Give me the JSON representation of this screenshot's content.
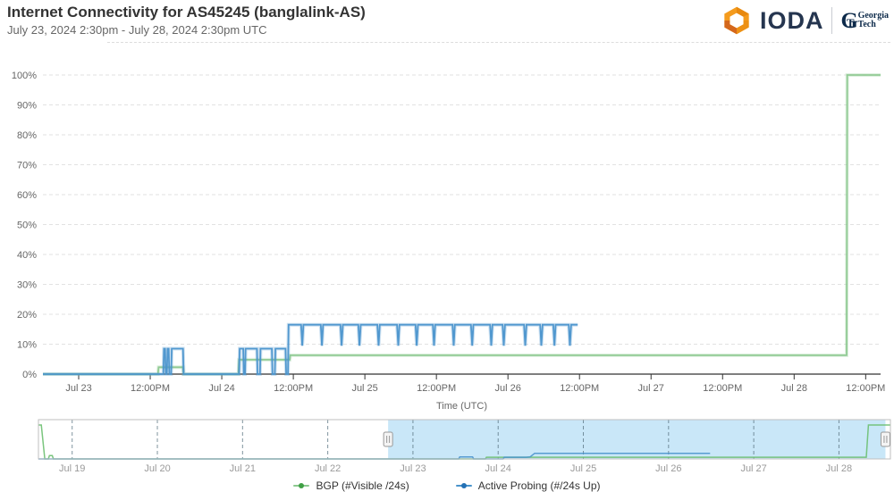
{
  "header": {
    "title": "Internet Connectivity for AS45245 (banglalink-AS)",
    "subtitle": "July 23, 2024 2:30pm - July 28, 2024 2:30pm UTC",
    "logos": {
      "ioda": "IODA",
      "gt_mark": "G",
      "gt_mark_t": "T",
      "gt_line1": "Georgia",
      "gt_line2": "Tech"
    }
  },
  "legend": {
    "items": [
      {
        "label": "BGP (#Visible /24s)",
        "color": "#8cc88f",
        "marker": "#3fa045"
      },
      {
        "label": "Active Probing (#/24s Up)",
        "color": "#4a94cc",
        "marker": "#2471b5"
      }
    ]
  },
  "chart_data": {
    "type": "line",
    "title": "Internet Connectivity for AS45245 (banglalink-AS)",
    "subtitle": "July 23, 2024 2:30pm - July 28, 2024 2:30pm UTC",
    "xlabel": "Time (UTC)",
    "ylabel": "",
    "legend_position": "bottom",
    "grid": "horizontal-dashed",
    "main": {
      "x_unit_hours_origin": "Jul 22 2024 18:00 UTC",
      "x_range": [
        0,
        140.5
      ],
      "y_range": [
        0,
        100
      ],
      "y_ticks": [
        {
          "v": 0,
          "label": "0%"
        },
        {
          "v": 10,
          "label": "10%"
        },
        {
          "v": 20,
          "label": "20%"
        },
        {
          "v": 30,
          "label": "30%"
        },
        {
          "v": 40,
          "label": "40%"
        },
        {
          "v": 50,
          "label": "50%"
        },
        {
          "v": 60,
          "label": "60%"
        },
        {
          "v": 70,
          "label": "70%"
        },
        {
          "v": 80,
          "label": "80%"
        },
        {
          "v": 90,
          "label": "90%"
        },
        {
          "v": 100,
          "label": "100%"
        }
      ],
      "x_ticks": [
        {
          "t": 6,
          "label": "Jul 23"
        },
        {
          "t": 18,
          "label": "12:00PM"
        },
        {
          "t": 30,
          "label": "Jul 24"
        },
        {
          "t": 42,
          "label": "12:00PM"
        },
        {
          "t": 54,
          "label": "Jul 25"
        },
        {
          "t": 66,
          "label": "12:00PM"
        },
        {
          "t": 78,
          "label": "Jul 26"
        },
        {
          "t": 90,
          "label": "12:00PM"
        },
        {
          "t": 102,
          "label": "Jul 27"
        },
        {
          "t": 114,
          "label": "12:00PM"
        },
        {
          "t": 126,
          "label": "Jul 28"
        },
        {
          "t": 138,
          "label": "12:00PM"
        }
      ],
      "series": [
        {
          "name": "BGP (#Visible /24s)",
          "color": "#8cc88f",
          "points": [
            [
              0,
              0
            ],
            [
              19.3,
              0
            ],
            [
              19.4,
              2.3
            ],
            [
              23.5,
              2.3
            ],
            [
              23.6,
              0
            ],
            [
              32.8,
              0
            ],
            [
              32.9,
              4.8
            ],
            [
              41.4,
              4.8
            ],
            [
              41.5,
              6.3
            ],
            [
              134.8,
              6.3
            ],
            [
              134.9,
              100
            ],
            [
              140.5,
              100
            ]
          ]
        },
        {
          "name": "Active Probing (#/24s Up)",
          "color": "#4a94cc",
          "points": [
            [
              0,
              0
            ],
            [
              20.2,
              0
            ],
            [
              20.3,
              8.5
            ],
            [
              20.5,
              8.5
            ],
            [
              20.6,
              0
            ],
            [
              20.8,
              0
            ],
            [
              20.9,
              8.5
            ],
            [
              21.1,
              8.5
            ],
            [
              21.2,
              0
            ],
            [
              21.5,
              0
            ],
            [
              21.6,
              8.5
            ],
            [
              23.5,
              8.5
            ],
            [
              23.6,
              0
            ],
            [
              32.9,
              0
            ],
            [
              33.0,
              8.5
            ],
            [
              33.6,
              8.5
            ],
            [
              33.7,
              0
            ],
            [
              33.9,
              0
            ],
            [
              34.0,
              8.5
            ],
            [
              35.9,
              8.5
            ],
            [
              36.0,
              0
            ],
            [
              36.4,
              0
            ],
            [
              36.5,
              8.5
            ],
            [
              38.4,
              8.5
            ],
            [
              38.5,
              0
            ],
            [
              38.9,
              0
            ],
            [
              39.0,
              8.5
            ],
            [
              40.7,
              8.5
            ],
            [
              40.8,
              0
            ],
            [
              41.1,
              0
            ],
            [
              41.2,
              16.5
            ],
            [
              43.3,
              16.5
            ],
            [
              43.5,
              9.5
            ],
            [
              43.7,
              16.5
            ],
            [
              46.6,
              16.5
            ],
            [
              46.8,
              9.5
            ],
            [
              47.0,
              16.5
            ],
            [
              49.9,
              16.5
            ],
            [
              50.1,
              9.5
            ],
            [
              50.3,
              16.5
            ],
            [
              52.9,
              16.5
            ],
            [
              53.1,
              9.5
            ],
            [
              53.3,
              16.5
            ],
            [
              56.1,
              16.5
            ],
            [
              56.3,
              9.5
            ],
            [
              56.5,
              16.5
            ],
            [
              59.4,
              16.5
            ],
            [
              59.6,
              9.5
            ],
            [
              59.8,
              16.5
            ],
            [
              62.5,
              16.5
            ],
            [
              62.7,
              9.5
            ],
            [
              62.9,
              16.5
            ],
            [
              65.4,
              16.5
            ],
            [
              65.6,
              9.5
            ],
            [
              65.8,
              16.5
            ],
            [
              68.7,
              16.5
            ],
            [
              68.9,
              9.5
            ],
            [
              69.1,
              16.5
            ],
            [
              71.8,
              16.5
            ],
            [
              72.0,
              9.5
            ],
            [
              72.2,
              16.5
            ],
            [
              75.0,
              16.5
            ],
            [
              75.2,
              9.5
            ],
            [
              75.4,
              16.5
            ],
            [
              77.1,
              16.5
            ],
            [
              77.3,
              9.5
            ],
            [
              77.5,
              16.5
            ],
            [
              80.7,
              16.5
            ],
            [
              80.9,
              9.5
            ],
            [
              81.1,
              16.5
            ],
            [
              83.4,
              16.5
            ],
            [
              83.6,
              9.5
            ],
            [
              83.8,
              16.5
            ],
            [
              85.6,
              16.5
            ],
            [
              85.8,
              9.5
            ],
            [
              86.0,
              16.5
            ],
            [
              88.2,
              16.5
            ],
            [
              88.4,
              9.5
            ],
            [
              88.6,
              16.5
            ],
            [
              89.7,
              16.5
            ]
          ]
        }
      ]
    },
    "navigator": {
      "x_unit_hours_origin": "Jul 18 2024 14:30 UTC",
      "x_range": [
        0,
        240
      ],
      "selection": [
        98.5,
        238.6
      ],
      "ticks": [
        {
          "t": 9.5,
          "label": "Jul 19"
        },
        {
          "t": 33.5,
          "label": "Jul 20"
        },
        {
          "t": 57.5,
          "label": "Jul 21"
        },
        {
          "t": 81.5,
          "label": "Jul 22"
        },
        {
          "t": 105.5,
          "label": "Jul 23"
        },
        {
          "t": 129.5,
          "label": "Jul 24"
        },
        {
          "t": 153.5,
          "label": "Jul 25"
        },
        {
          "t": 177.5,
          "label": "Jul 26"
        },
        {
          "t": 201.5,
          "label": "Jul 27"
        },
        {
          "t": 225.5,
          "label": "Jul 28"
        }
      ],
      "series": [
        {
          "name": "BGP (#Visible /24s)",
          "color": "#6cbf70",
          "points": [
            [
              0,
              100
            ],
            [
              0.8,
              100
            ],
            [
              1.8,
              0
            ],
            [
              2.8,
              0
            ],
            [
              3.1,
              10
            ],
            [
              3.9,
              10
            ],
            [
              4.2,
              0
            ],
            [
              125.9,
              0
            ],
            [
              126.2,
              5
            ],
            [
              233.2,
              5
            ],
            [
              233.8,
              100
            ],
            [
              240,
              100
            ]
          ]
        },
        {
          "name": "Active Probing (#/24s Up)",
          "color": "#4a94cc",
          "points": [
            [
              0,
              0
            ],
            [
              118.4,
              0
            ],
            [
              118.7,
              6
            ],
            [
              122.3,
              6
            ],
            [
              122.6,
              0
            ],
            [
              130.9,
              0
            ],
            [
              131.2,
              5
            ],
            [
              137.4,
              5
            ],
            [
              138.5,
              6
            ],
            [
              139.8,
              16.5
            ],
            [
              189.2,
              16.5
            ]
          ]
        }
      ]
    }
  }
}
